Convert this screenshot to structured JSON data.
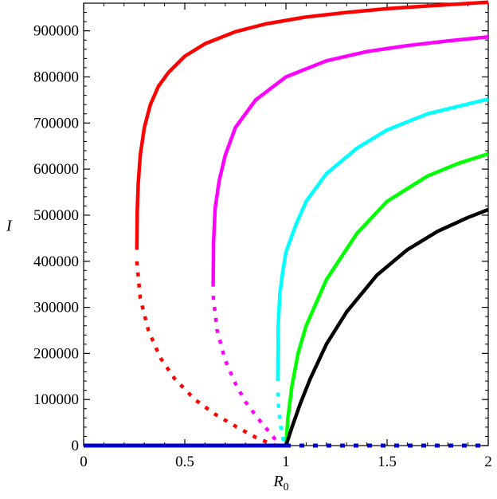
{
  "chart_data": {
    "type": "line",
    "xlabel": "R",
    "xlabel_subscript": "0",
    "ylabel": "I",
    "xlim": [
      0,
      2
    ],
    "ylim": [
      0,
      960000
    ],
    "x_ticks": [
      "0",
      "0.5",
      "1",
      "1.5",
      "2"
    ],
    "y_ticks": [
      "0",
      "100000",
      "200000",
      "300000",
      "400000",
      "500000",
      "600000",
      "700000",
      "800000",
      "900000"
    ],
    "grid": false,
    "legend": "none",
    "colors": {
      "red": "#ff0000",
      "magenta": "#ff00ff",
      "cyan": "#00ffff",
      "green": "#00ff00",
      "black": "#000000",
      "blue": "#0000cc"
    },
    "series": [
      {
        "color": "red",
        "style": "solid",
        "x": [
          0.263,
          0.265,
          0.27,
          0.28,
          0.3,
          0.33,
          0.37,
          0.42,
          0.5,
          0.6,
          0.75,
          0.9,
          1.1,
          1.3,
          1.5,
          1.7,
          2.0
        ],
        "y": [
          425000,
          510000,
          570000,
          630000,
          690000,
          740000,
          780000,
          810000,
          845000,
          872000,
          898000,
          915000,
          930000,
          940000,
          948000,
          954000,
          962000
        ]
      },
      {
        "color": "red",
        "style": "dotted",
        "x": [
          0.263,
          0.28,
          0.32,
          0.38,
          0.45,
          0.55,
          0.65,
          0.75,
          0.85,
          0.92,
          0.95
        ],
        "y": [
          400000,
          320000,
          250000,
          190000,
          145000,
          100000,
          68000,
          42000,
          18000,
          5000,
          0
        ]
      },
      {
        "color": "magenta",
        "style": "solid",
        "x": [
          0.64,
          0.642,
          0.65,
          0.67,
          0.7,
          0.75,
          0.85,
          1.0,
          1.2,
          1.4,
          1.6,
          1.8,
          2.0
        ],
        "y": [
          345000,
          440000,
          515000,
          575000,
          630000,
          690000,
          750000,
          800000,
          835000,
          855000,
          868000,
          878000,
          887000
        ]
      },
      {
        "color": "magenta",
        "style": "dotted",
        "x": [
          0.64,
          0.66,
          0.7,
          0.75,
          0.8,
          0.86,
          0.92,
          0.95,
          0.97
        ],
        "y": [
          325000,
          250000,
          185000,
          135000,
          95000,
          60000,
          28000,
          12000,
          0
        ]
      },
      {
        "color": "cyan",
        "style": "solid",
        "x": [
          0.96,
          0.962,
          0.97,
          0.985,
          1.0,
          1.05,
          1.1,
          1.2,
          1.35,
          1.5,
          1.7,
          2.0
        ],
        "y": [
          140000,
          260000,
          330000,
          380000,
          420000,
          480000,
          530000,
          590000,
          645000,
          685000,
          720000,
          752000
        ]
      },
      {
        "color": "cyan",
        "style": "dotted",
        "x": [
          0.96,
          0.965,
          0.975,
          0.985,
          0.995,
          1.0
        ],
        "y": [
          115000,
          75000,
          40000,
          15000,
          3000,
          0
        ]
      },
      {
        "color": "green",
        "style": "solid",
        "x": [
          1.0,
          1.01,
          1.03,
          1.06,
          1.1,
          1.2,
          1.35,
          1.5,
          1.7,
          1.85,
          2.0
        ],
        "y": [
          0,
          60000,
          130000,
          200000,
          260000,
          360000,
          460000,
          530000,
          585000,
          612000,
          633000
        ]
      },
      {
        "color": "black",
        "style": "solid",
        "x": [
          1.0,
          1.03,
          1.07,
          1.12,
          1.2,
          1.3,
          1.45,
          1.6,
          1.75,
          1.9,
          2.0
        ],
        "y": [
          0,
          40000,
          90000,
          145000,
          220000,
          290000,
          370000,
          425000,
          465000,
          495000,
          512000
        ]
      },
      {
        "color": "blue",
        "style": "solid",
        "x": [
          0,
          1.0
        ],
        "y": [
          0,
          0
        ]
      },
      {
        "color": "blue",
        "style": "dotted",
        "x": [
          1.0,
          2.0
        ],
        "y": [
          0,
          0
        ]
      }
    ]
  }
}
